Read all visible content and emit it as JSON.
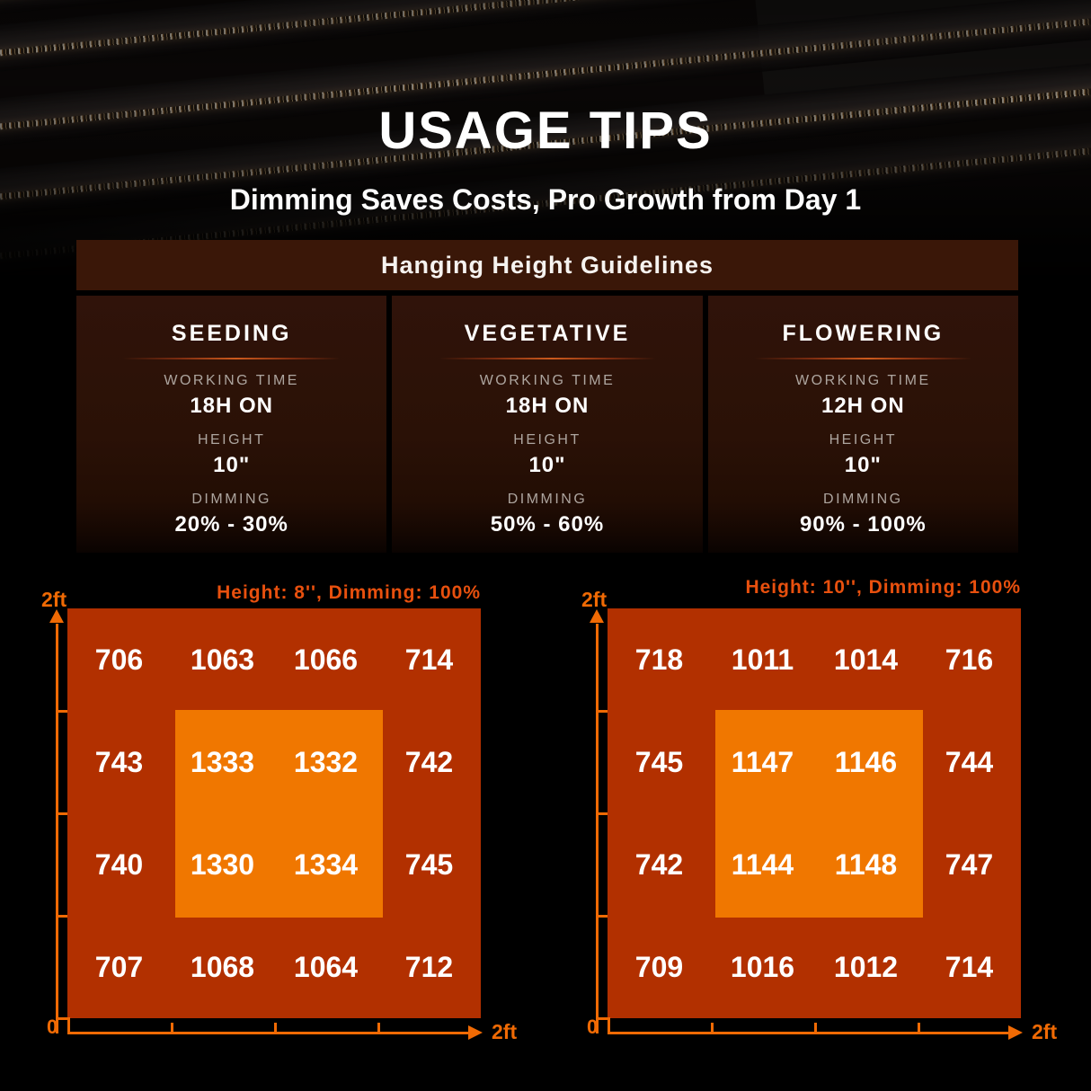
{
  "title": "USAGE TIPS",
  "subtitle": "Dimming Saves Costs, Pro Growth from Day 1",
  "guidelines": {
    "header": "Hanging Height Guidelines",
    "stages": [
      {
        "name": "SEEDING",
        "working_time_label": "WORKING TIME",
        "working_time": "18H ON",
        "height_label": "HEIGHT",
        "height": "10\"",
        "dimming_label": "DIMMING",
        "dimming": "20% - 30%"
      },
      {
        "name": "VEGETATIVE",
        "working_time_label": "WORKING TIME",
        "working_time": "18H ON",
        "height_label": "HEIGHT",
        "height": "10\"",
        "dimming_label": "DIMMING",
        "dimming": "50% - 60%"
      },
      {
        "name": "FLOWERING",
        "working_time_label": "WORKING TIME",
        "working_time": "12H ON",
        "height_label": "HEIGHT",
        "height": "10\"",
        "dimming_label": "DIMMING",
        "dimming": "90% - 100%"
      }
    ]
  },
  "chart_data": [
    {
      "type": "heatmap",
      "title": "Height: 8'', Dimming: 100%",
      "y_axis_top_label": "2ft",
      "x_axis_right_label": "2ft",
      "origin_label": "0",
      "x_range_ft": [
        0,
        2
      ],
      "y_range_ft": [
        0,
        2
      ],
      "grid": "4x4",
      "center_highlight": "middle 2x2 cells on bright orange zone",
      "values": [
        [
          706,
          1063,
          1066,
          714
        ],
        [
          743,
          1333,
          1332,
          742
        ],
        [
          740,
          1330,
          1334,
          745
        ],
        [
          707,
          1068,
          1064,
          712
        ]
      ]
    },
    {
      "type": "heatmap",
      "title": "Height: 10'', Dimming: 100%",
      "y_axis_top_label": "2ft",
      "x_axis_right_label": "2ft",
      "origin_label": "0",
      "x_range_ft": [
        0,
        2
      ],
      "y_range_ft": [
        0,
        2
      ],
      "grid": "4x4",
      "center_highlight": "middle 2x2 cells on bright orange zone",
      "values": [
        [
          718,
          1011,
          1014,
          716
        ],
        [
          745,
          1147,
          1146,
          744
        ],
        [
          742,
          1144,
          1148,
          747
        ],
        [
          709,
          1016,
          1012,
          714
        ]
      ]
    }
  ],
  "colors": {
    "background": "#000000",
    "header_brown": "#3a1708",
    "panel_brown": "#2a1106",
    "map_outer_square": "#b23000",
    "map_inner_square": "#f07700",
    "axis_orange": "#f06a04",
    "map_title_orange": "#e8500e",
    "label_gray": "#ada59f",
    "text_white": "#ffffff"
  }
}
